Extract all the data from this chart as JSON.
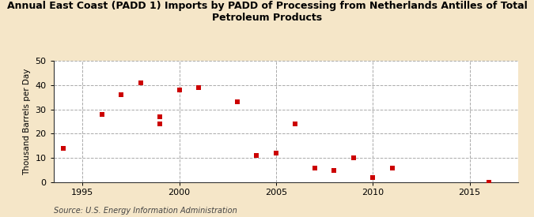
{
  "title_line1": "Annual East Coast (PADD 1) Imports by PADD of Processing from Netherlands Antilles of Total",
  "title_line2": "Petroleum Products",
  "ylabel": "Thousand Barrels per Day",
  "source": "Source: U.S. Energy Information Administration",
  "background_color": "#f5e6c8",
  "plot_background_color": "#ffffff",
  "marker_color": "#cc0000",
  "years": [
    1994,
    1996,
    1997,
    1998,
    1999,
    1999,
    2000,
    2001,
    2003,
    2004,
    2005,
    2006,
    2007,
    2008,
    2009,
    2010,
    2011,
    2016
  ],
  "values": [
    14,
    28,
    36,
    41,
    27,
    24,
    38,
    39,
    33,
    11,
    12,
    24,
    6,
    5,
    10,
    2,
    6,
    0
  ],
  "xlim": [
    1993.5,
    2017.5
  ],
  "ylim": [
    0,
    50
  ],
  "xticks": [
    1995,
    2000,
    2005,
    2010,
    2015
  ],
  "yticks": [
    0,
    10,
    20,
    30,
    40,
    50
  ],
  "grid_color": "#aaaaaa",
  "grid_linestyle": "--",
  "grid_linewidth": 0.7,
  "tick_fontsize": 8,
  "ylabel_fontsize": 7.5,
  "title_fontsize": 9,
  "source_fontsize": 7,
  "marker_size": 20
}
